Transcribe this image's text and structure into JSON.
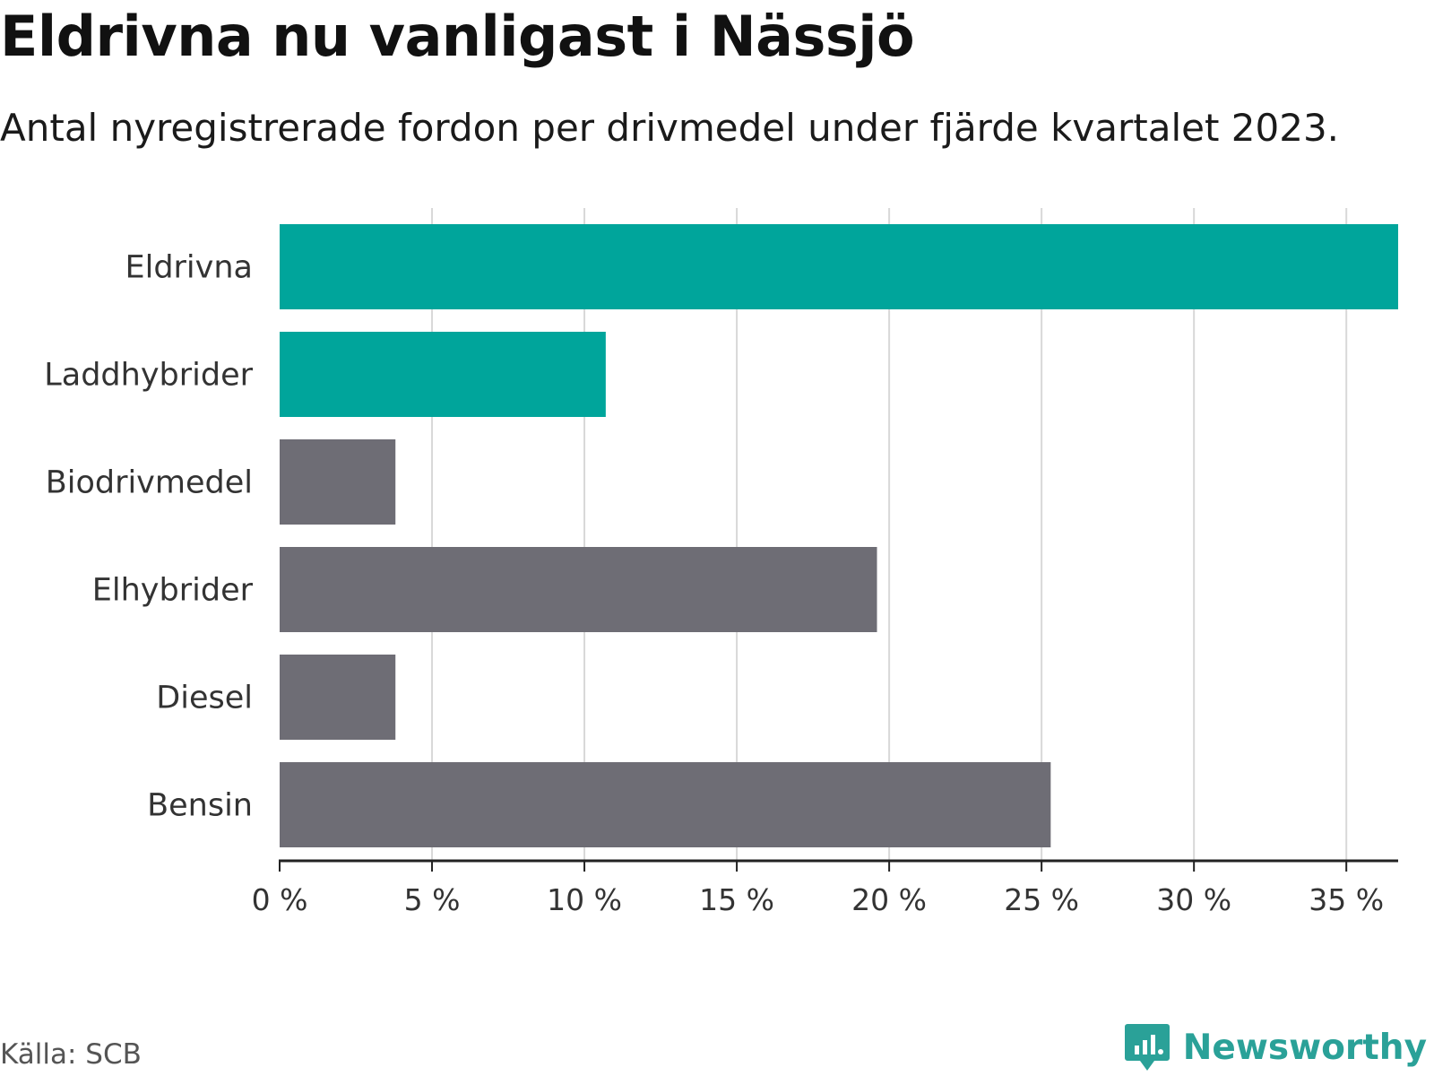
{
  "colors": {
    "highlight": "#00a59b",
    "default": "#6e6d75",
    "grid": "#d8d8d8",
    "axis": "#222222",
    "brand": "#2aa198"
  },
  "chart_data": {
    "type": "bar",
    "orientation": "horizontal",
    "title": "Eldrivna nu vanligast i Nässjö",
    "subtitle": "Antal nyregistrerade fordon per drivmedel under fjärde kvartalet 2023.",
    "categories": [
      "Eldrivna",
      "Laddhybrider",
      "Biodrivmedel",
      "Elhybrider",
      "Diesel",
      "Bensin"
    ],
    "values": [
      36.7,
      10.7,
      3.8,
      19.6,
      3.8,
      25.3
    ],
    "highlighted": [
      true,
      true,
      false,
      false,
      false,
      false
    ],
    "xlim": [
      0,
      36.7
    ],
    "xticks": [
      0,
      5,
      10,
      15,
      20,
      25,
      30,
      35
    ],
    "xtick_labels": [
      "0 %",
      "5 %",
      "10 %",
      "15 %",
      "20 %",
      "25 %",
      "30 %",
      "35 %"
    ],
    "xlabel": "",
    "ylabel": "",
    "grid": true,
    "unit": "%"
  },
  "footer": {
    "source": "Källa: SCB",
    "brand": "Newsworthy"
  }
}
